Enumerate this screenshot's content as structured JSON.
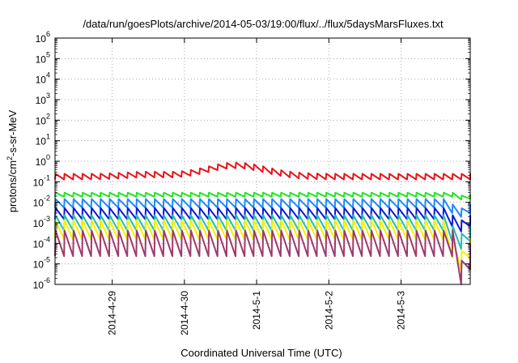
{
  "chart_data": {
    "type": "line",
    "title": "/data/run/goesPlots/archive/2014-05-03/19:00/flux/../flux/5daysMarsFluxes.txt",
    "xlabel": "Coordinated Universal Time (UTC)",
    "ylabel": {
      "pre": "protons/cm",
      "sup": "2",
      "post": "-s-sr-MeV"
    },
    "y_scale": "log",
    "ylim": [
      1e-06,
      1000000.0
    ],
    "y_ticks": [
      {
        "base": "10",
        "exp": "-6"
      },
      {
        "base": "10",
        "exp": "-5"
      },
      {
        "base": "10",
        "exp": "-4"
      },
      {
        "base": "10",
        "exp": "-3"
      },
      {
        "base": "10",
        "exp": "-2"
      },
      {
        "base": "10",
        "exp": "-1"
      },
      {
        "base": "10",
        "exp": "0"
      },
      {
        "base": "10",
        "exp": "1"
      },
      {
        "base": "10",
        "exp": "2"
      },
      {
        "base": "10",
        "exp": "3"
      },
      {
        "base": "10",
        "exp": "4"
      },
      {
        "base": "10",
        "exp": "5"
      },
      {
        "base": "10",
        "exp": "6"
      }
    ],
    "xlim": [
      "2014-04-28 05:00",
      "2014-05-03 23:00"
    ],
    "x_ticks": [
      "2014-4-29",
      "2014-4-30",
      "2014-5-1",
      "2014-5-2",
      "2014-5-3"
    ],
    "grid": true,
    "legend": "none",
    "sawtooth_period_hours": 3,
    "series": [
      {
        "color": "#e8141b",
        "base_log": -0.75,
        "bumps": [
          {
            "center_h": 60,
            "width_h": 14,
            "amp": 0.55
          },
          {
            "center_h": 30,
            "width_h": 10,
            "amp": 0.1
          }
        ],
        "dip": null,
        "tooth_amp": 0.28
      },
      {
        "color": "#22e522",
        "base_log": -1.63,
        "dip": {
          "start_h": 132,
          "end_h": 140,
          "depth": 0.15
        },
        "tooth_amp": 0.2
      },
      {
        "color": "#1e88ff",
        "base_log": -2.05,
        "dip": {
          "start_h": 130,
          "end_h": 140,
          "depth": 0.45
        },
        "tooth_amp": 0.42
      },
      {
        "color": "#0a1ad6",
        "base_log": -2.55,
        "dip": {
          "start_h": 130,
          "end_h": 140,
          "depth": 0.6
        },
        "tooth_amp": 0.55
      },
      {
        "color": "#1fbfb0",
        "base_log": -3.0,
        "dip": {
          "start_h": 130,
          "end_h": 140,
          "depth": 0.9
        },
        "tooth_amp": 0.75
      },
      {
        "color": "#f2f200",
        "base_log": -3.35,
        "dip": {
          "start_h": 130,
          "end_h": 140,
          "depth": 1.5
        },
        "tooth_amp": 0.95
      },
      {
        "color": "#9c3a6e",
        "base_log": -4.0,
        "dip": {
          "start_h": 132,
          "end_h": 139,
          "depth": 1.5
        },
        "tooth_amp": 1.25
      }
    ]
  }
}
